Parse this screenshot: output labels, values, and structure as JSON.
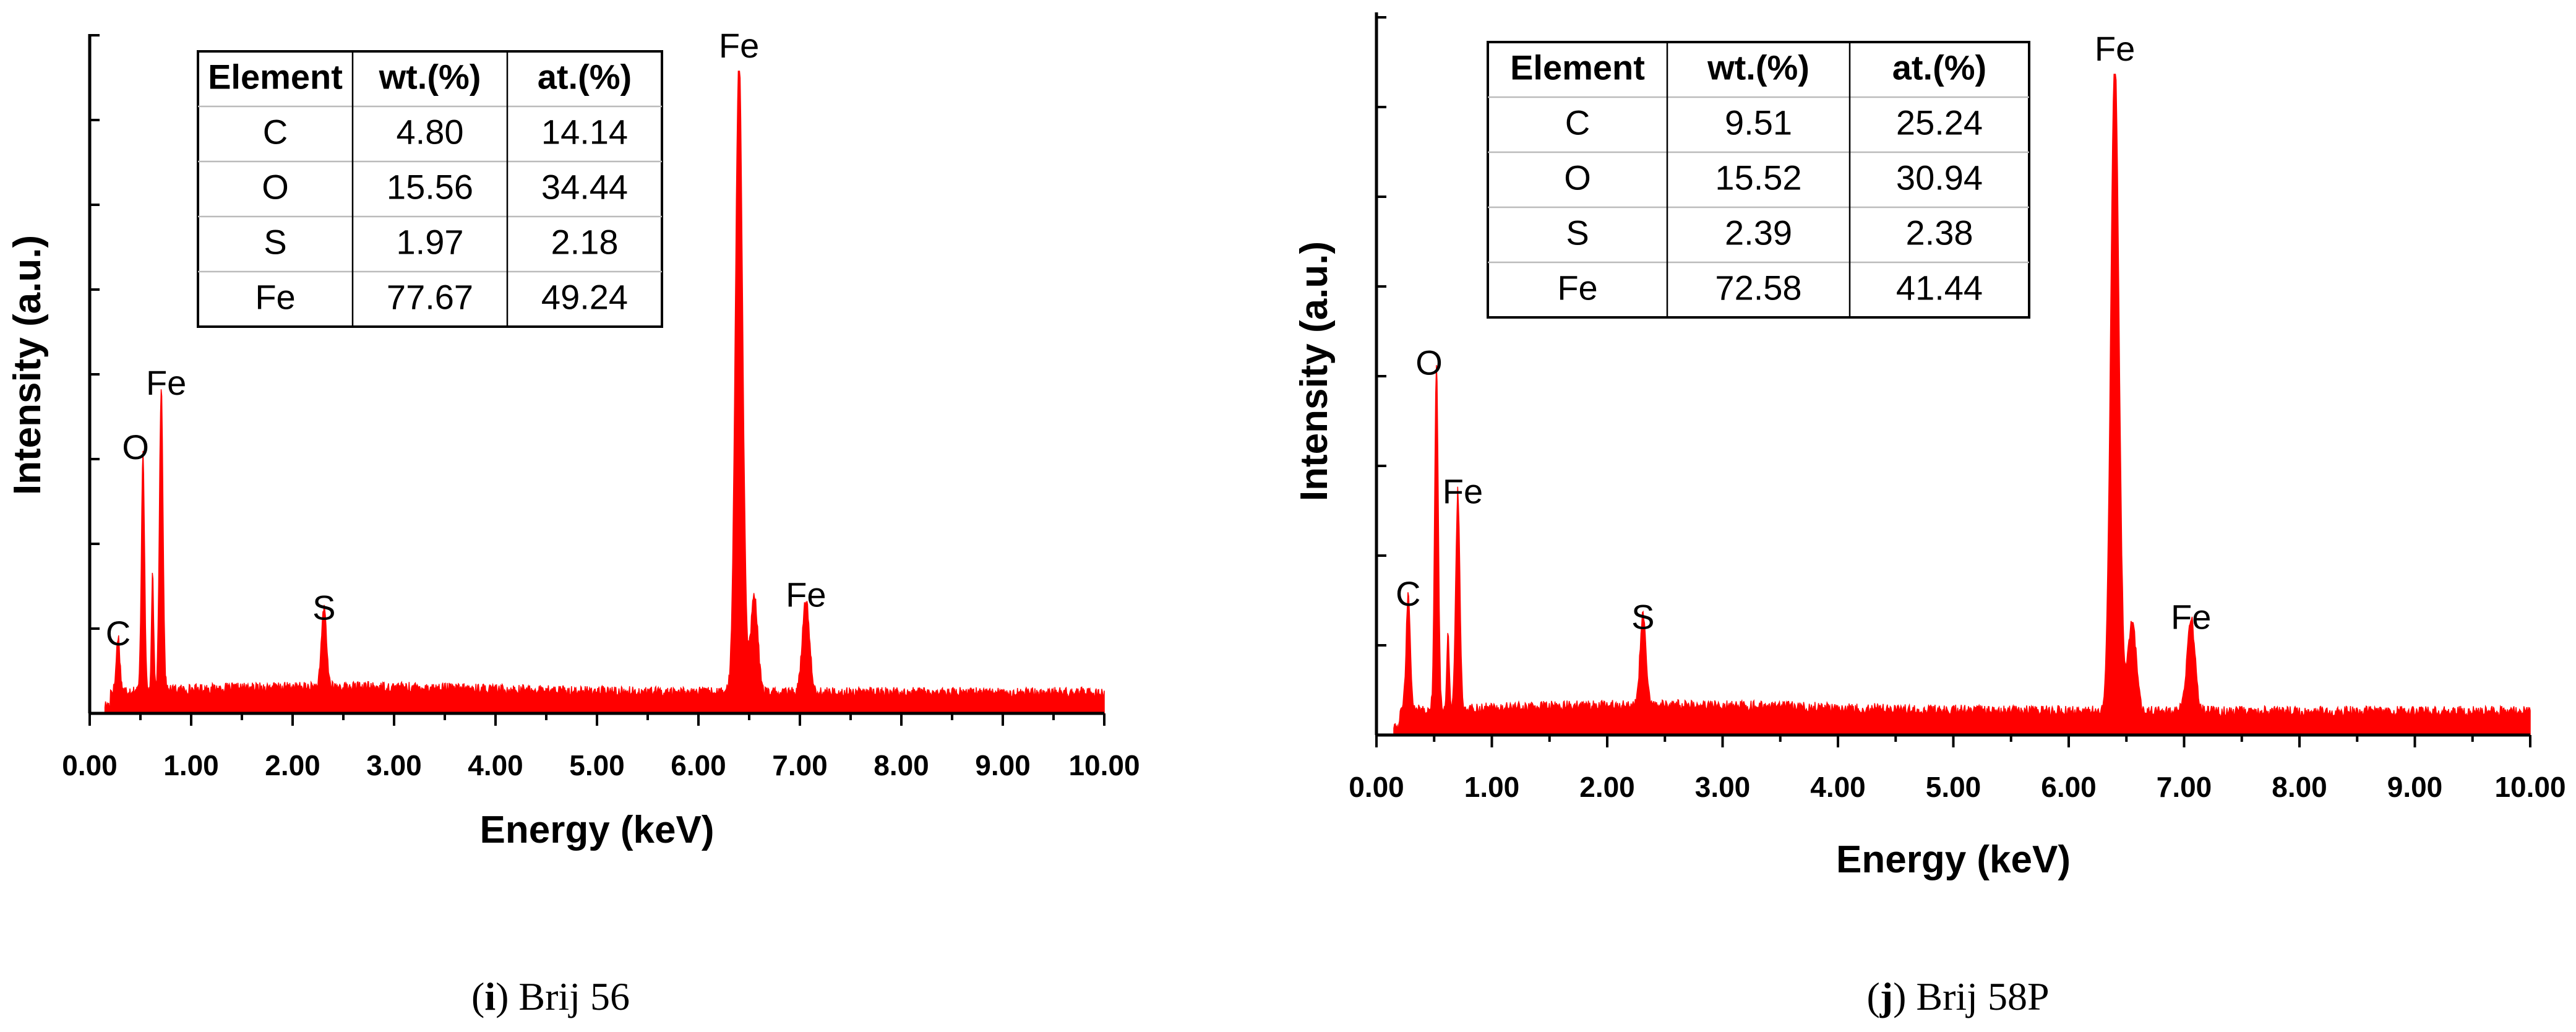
{
  "chart_data": [
    {
      "type": "area",
      "caption_letter": "i",
      "caption_text": "Brij 56",
      "xlabel": "Energy (keV)",
      "ylabel": "Intensity (a.u.)",
      "xlim": [
        0,
        10
      ],
      "x_ticks": [
        "0.00",
        "1.00",
        "2.00",
        "3.00",
        "4.00",
        "5.00",
        "6.00",
        "7.00",
        "8.00",
        "9.00",
        "10.00"
      ],
      "ylim": [
        0,
        100
      ],
      "baseline": 2.5,
      "peaks": [
        {
          "label": "C",
          "x": 0.28,
          "y": 8.5,
          "width": 0.025
        },
        {
          "label": "O",
          "x": 0.525,
          "y": 37.5,
          "width": 0.022
        },
        {
          "label": "Fe",
          "x": 0.705,
          "y": 47.5,
          "width": 0.025
        },
        {
          "label": "S",
          "x": 2.31,
          "y": 12.5,
          "width": 0.035
        },
        {
          "label": "Fe",
          "x": 6.4,
          "y": 100,
          "width": 0.05
        },
        {
          "label": "Fe",
          "x": 7.06,
          "y": 14.5,
          "width": 0.05
        }
      ],
      "shoulders": [
        {
          "x": 0.62,
          "y": 18,
          "width": 0.015
        },
        {
          "x": 6.55,
          "y": 15,
          "width": 0.05
        }
      ],
      "table": {
        "headers": [
          "Element",
          "wt.(%)",
          "at.(%)"
        ],
        "rows": [
          [
            "C",
            "4.80",
            "14.14"
          ],
          [
            "O",
            "15.56",
            "34.44"
          ],
          [
            "S",
            "1.97",
            "2.18"
          ],
          [
            "Fe",
            "77.67",
            "49.24"
          ]
        ]
      }
    },
    {
      "type": "area",
      "caption_letter": "j",
      "caption_text": "Brij 58P",
      "xlabel": "Energy (keV)",
      "ylabel": "Intensity (a.u.)",
      "xlim": [
        0,
        10
      ],
      "x_ticks": [
        "0.00",
        "1.00",
        "2.00",
        "3.00",
        "4.00",
        "5.00",
        "6.00",
        "7.00",
        "8.00",
        "9.00",
        "10.00"
      ],
      "ylim": [
        0,
        100
      ],
      "baseline": 2.8,
      "peaks": [
        {
          "label": "C",
          "x": 0.275,
          "y": 17.5,
          "width": 0.025
        },
        {
          "label": "O",
          "x": 0.52,
          "y": 52.5,
          "width": 0.022
        },
        {
          "label": "Fe",
          "x": 0.705,
          "y": 33,
          "width": 0.025
        },
        {
          "label": "S",
          "x": 2.31,
          "y": 14,
          "width": 0.035
        },
        {
          "label": "Fe",
          "x": 6.4,
          "y": 100,
          "width": 0.05
        },
        {
          "label": "Fe",
          "x": 7.06,
          "y": 14,
          "width": 0.05
        }
      ],
      "shoulders": [
        {
          "x": 0.62,
          "y": 12,
          "width": 0.015
        },
        {
          "x": 6.55,
          "y": 14,
          "width": 0.05
        }
      ],
      "table": {
        "headers": [
          "Element",
          "wt.(%)",
          "at.(%)"
        ],
        "rows": [
          [
            "C",
            "9.51",
            "25.24"
          ],
          [
            "O",
            "15.52",
            "30.94"
          ],
          [
            "S",
            "2.39",
            "2.38"
          ],
          [
            "Fe",
            "72.58",
            "41.44"
          ]
        ]
      }
    }
  ]
}
